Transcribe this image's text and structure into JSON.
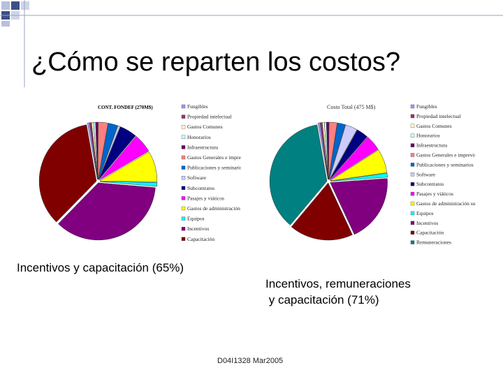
{
  "slide": {
    "title": "¿Cómo se reparten los costos?",
    "caption_left": "Incentivos y capacitación (65%)",
    "caption_right_line1": "Incentivos, remuneraciones",
    "caption_right_line2": " y capacitación (71%)",
    "footer": "D04I1328 Mar2005"
  },
  "charts": {
    "left": {
      "title": "CONT. FONDEF (270M$)",
      "legend": [
        {
          "label": "Fungibles",
          "color": "#9999ff"
        },
        {
          "label": "Propiedad intelectual",
          "color": "#993366"
        },
        {
          "label": "Gastos Comunes",
          "color": "#ffffcc"
        },
        {
          "label": "Honorarios",
          "color": "#ccffff"
        },
        {
          "label": "Infraestructura",
          "color": "#660066"
        },
        {
          "label": "Gastos Generales e imprevistos",
          "color": "#ff8080"
        },
        {
          "label": "Publicaciones y seminarios",
          "color": "#0066cc"
        },
        {
          "label": "Software",
          "color": "#ccccff"
        },
        {
          "label": "Subcontratos",
          "color": "#000080"
        },
        {
          "label": "Pasajes y viáticos",
          "color": "#ff00ff"
        },
        {
          "label": "Gastos de administración superior",
          "color": "#ffff00"
        },
        {
          "label": "Equipos",
          "color": "#00ffff"
        },
        {
          "label": "Incentivos",
          "color": "#800080"
        },
        {
          "label": "Capacitación",
          "color": "#800000"
        }
      ]
    },
    "right": {
      "title": "Costo Total (475 M$)",
      "legend": [
        {
          "label": "Fungibles",
          "color": "#9999ff"
        },
        {
          "label": "Propiedad intelectual",
          "color": "#993366"
        },
        {
          "label": "Gastos Comunes",
          "color": "#ffffcc"
        },
        {
          "label": "Honorarios",
          "color": "#ccffff"
        },
        {
          "label": "Infraestructura",
          "color": "#660066"
        },
        {
          "label": "Gastos Generales e imprevistos",
          "color": "#ff8080"
        },
        {
          "label": "Publicaciones y seminarios",
          "color": "#0066cc"
        },
        {
          "label": "Software",
          "color": "#ccccff"
        },
        {
          "label": "Subcontratos",
          "color": "#000080"
        },
        {
          "label": "Pasajes y viáticos",
          "color": "#ff00ff"
        },
        {
          "label": "Gastos de administración superior",
          "color": "#ffff00"
        },
        {
          "label": "Equipos",
          "color": "#00ffff"
        },
        {
          "label": "Incentivos",
          "color": "#800080"
        },
        {
          "label": "Capacitación",
          "color": "#800000"
        },
        {
          "label": "Remuneraciones",
          "color": "#008080"
        }
      ]
    }
  }
}
